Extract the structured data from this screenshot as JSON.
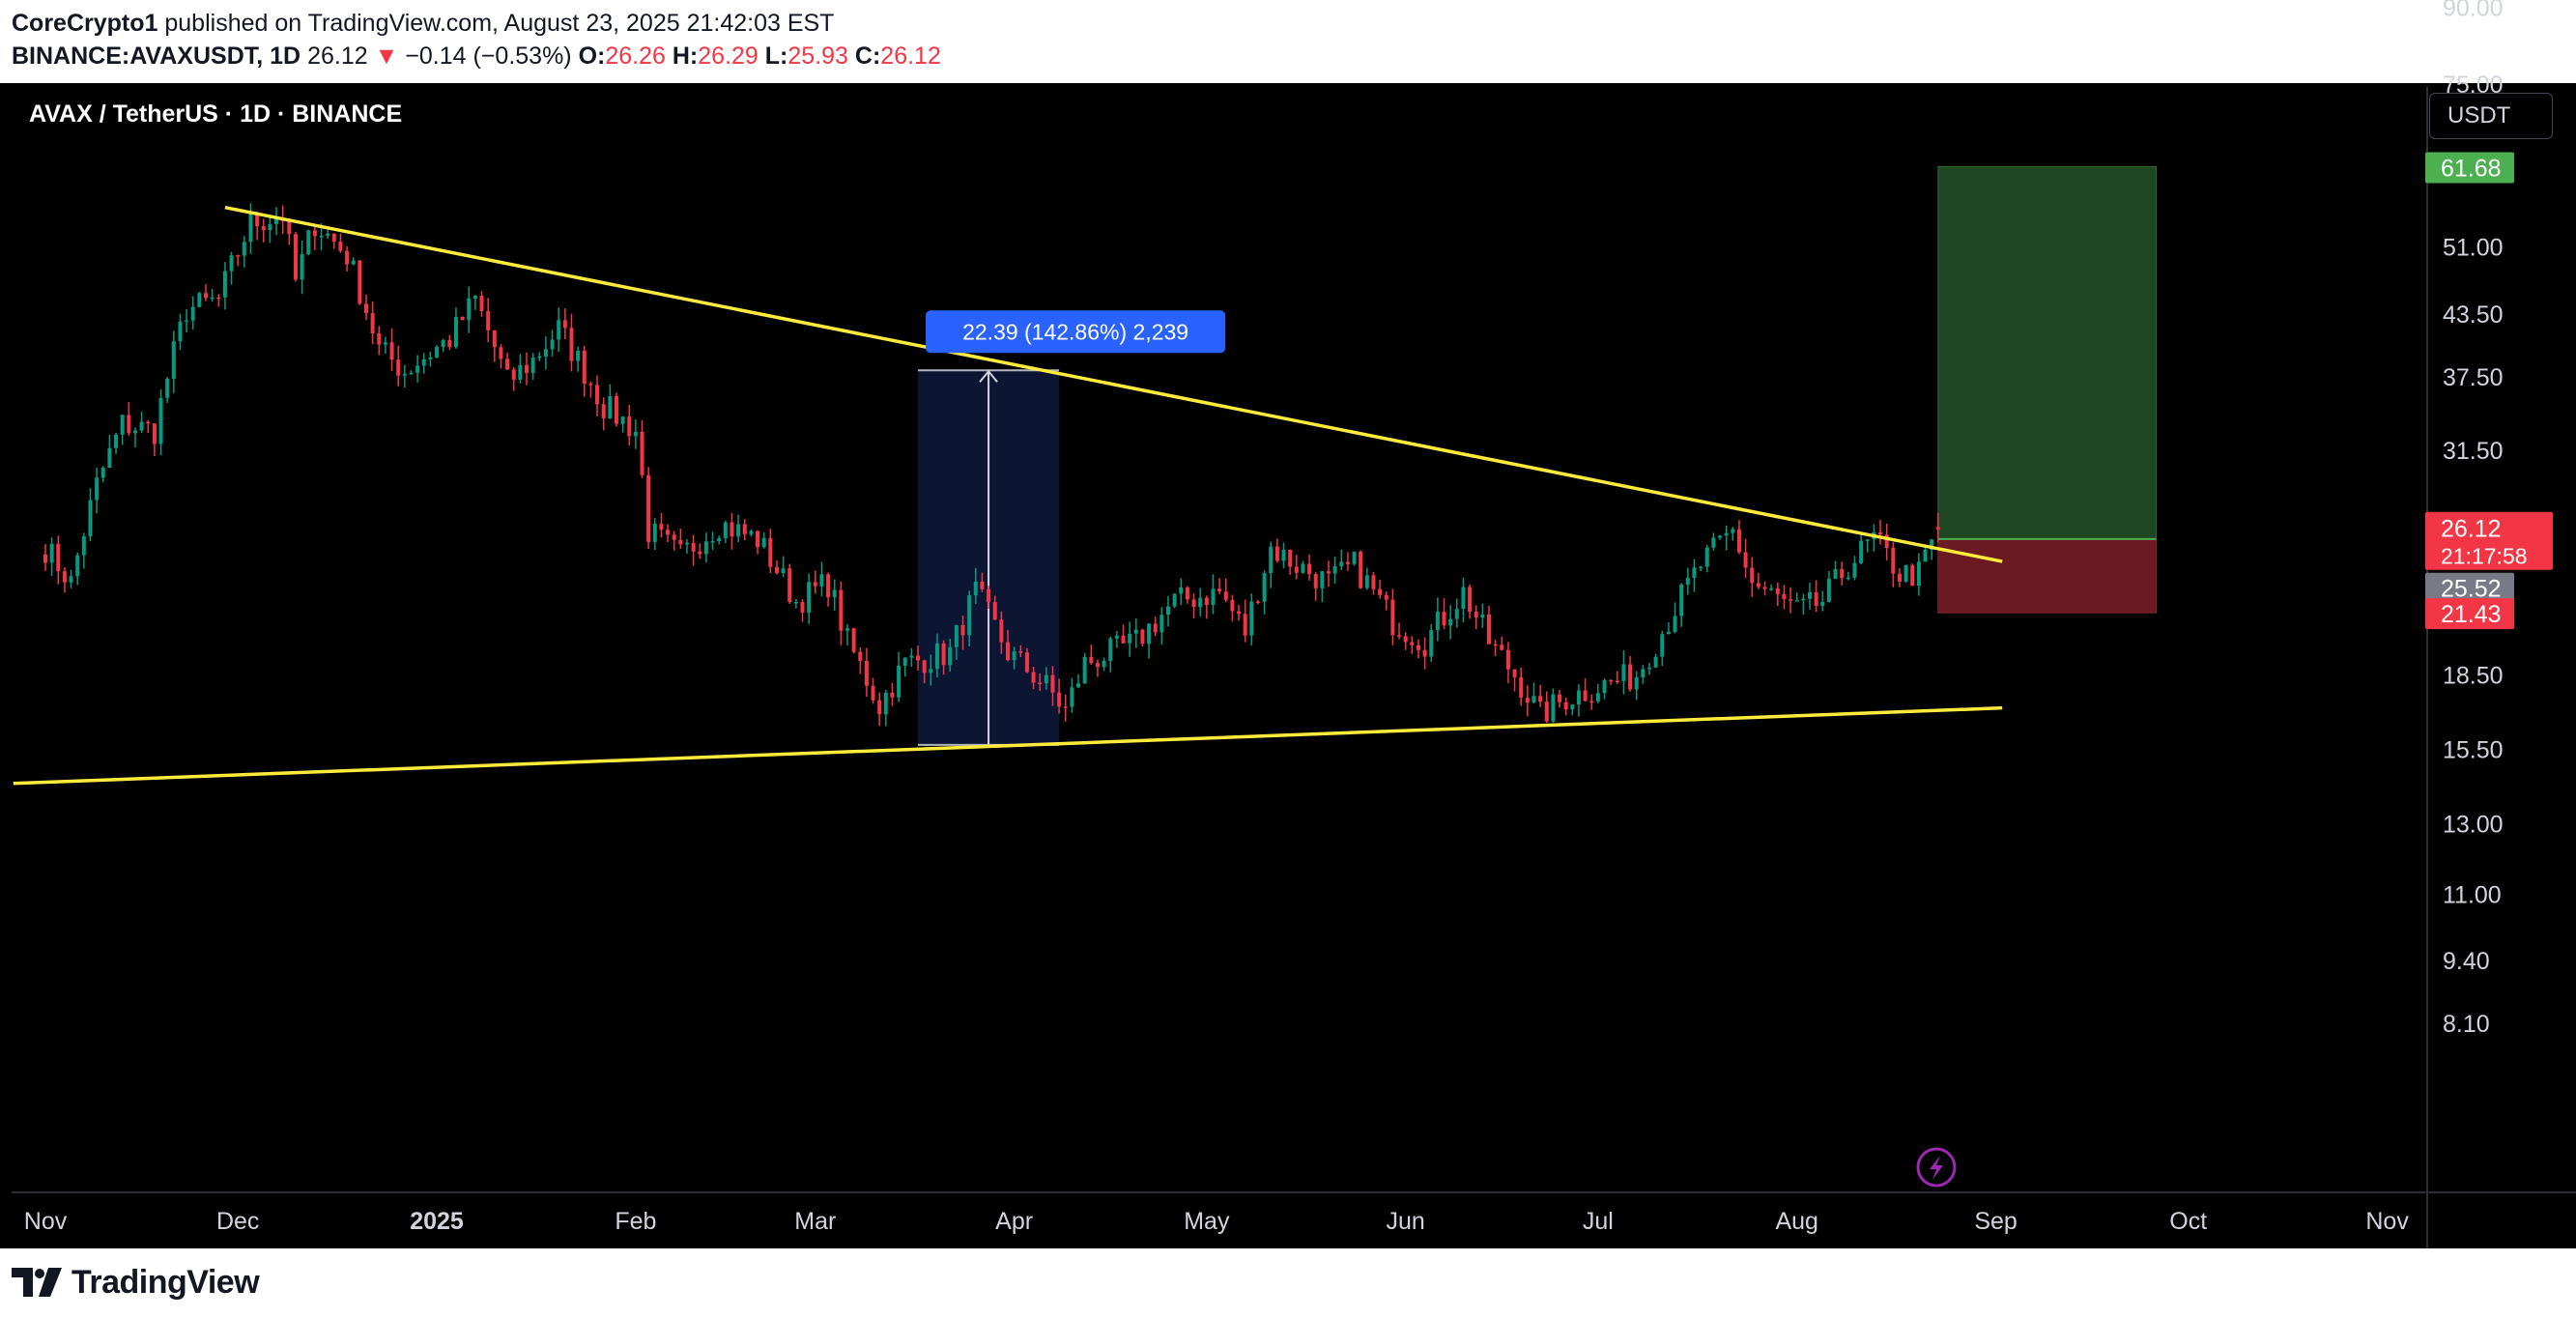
{
  "header": {
    "author": "CoreCrypto1",
    "published_text": "published on TradingView.com, August 23, 2025 21:42:03 EST",
    "symbol_line": "BINANCE:AVAXUSDT, 1D",
    "last_price": "26.12",
    "change_arrow": "▼",
    "change": "−0.14 (−0.53%)",
    "open_label": "O:",
    "open": "26.26",
    "high_label": "H:",
    "high": "26.29",
    "low_label": "L:",
    "low": "25.93",
    "close_label": "C:",
    "close": "26.12"
  },
  "chart_title": "AVAX / TetherUS · 1D · BINANCE",
  "currency_button": "USDT",
  "footer": {
    "brand": "TradingView"
  },
  "colors": {
    "up": "#089981",
    "down": "#f23645",
    "trendline": "#ffeb3b",
    "target_zone": "#1e4620",
    "stop_zone": "#6b1a21",
    "measure_box": "#0c1633",
    "measure_label_bg": "#2962ff"
  },
  "chart_data": {
    "type": "candlestick",
    "scale": "log",
    "ylim": [
      7.5,
      100
    ],
    "x_ticks": [
      "Nov",
      "Dec",
      "2025",
      "Feb",
      "Mar",
      "Apr",
      "May",
      "Jun",
      "Jul",
      "Aug",
      "Sep",
      "Oct",
      "Nov"
    ],
    "x_tick_dates": [
      "2024-11-01",
      "2024-12-01",
      "2025-01-01",
      "2025-02-01",
      "2025-03-01",
      "2025-04-01",
      "2025-05-01",
      "2025-06-01",
      "2025-07-01",
      "2025-08-01",
      "2025-09-01",
      "2025-10-01",
      "2025-11-01"
    ],
    "y_ticks": [
      "90.00",
      "75.00",
      "51.00",
      "43.50",
      "37.50",
      "31.50",
      "18.50",
      "15.50",
      "13.00",
      "11.00",
      "9.40",
      "8.10"
    ],
    "y_tick_values": [
      90,
      75,
      51,
      43.5,
      37.5,
      31.5,
      18.5,
      15.5,
      13,
      11,
      9.4,
      8.1
    ],
    "ohlc_keypoints": [
      {
        "date": "2024-11-01",
        "close": 25.0
      },
      {
        "date": "2024-11-05",
        "close": 23.0
      },
      {
        "date": "2024-11-09",
        "close": 29.0
      },
      {
        "date": "2024-11-13",
        "close": 33.5
      },
      {
        "date": "2024-11-18",
        "close": 33.0
      },
      {
        "date": "2024-11-23",
        "close": 44.0
      },
      {
        "date": "2024-11-28",
        "close": 45.0
      },
      {
        "date": "2024-12-03",
        "close": 54.0
      },
      {
        "date": "2024-12-08",
        "close": 55.0
      },
      {
        "date": "2024-12-10",
        "close": 47.0
      },
      {
        "date": "2024-12-13",
        "close": 54.0
      },
      {
        "date": "2024-12-18",
        "close": 50.0
      },
      {
        "date": "2024-12-23",
        "close": 40.0
      },
      {
        "date": "2024-12-27",
        "close": 38.0
      },
      {
        "date": "2025-01-03",
        "close": 41.0
      },
      {
        "date": "2025-01-07",
        "close": 45.0
      },
      {
        "date": "2025-01-12",
        "close": 37.0
      },
      {
        "date": "2025-01-16",
        "close": 39.0
      },
      {
        "date": "2025-01-20",
        "close": 42.0
      },
      {
        "date": "2025-01-27",
        "close": 35.0
      },
      {
        "date": "2025-02-01",
        "close": 33.0
      },
      {
        "date": "2025-02-03",
        "close": 26.0
      },
      {
        "date": "2025-02-08",
        "close": 24.5
      },
      {
        "date": "2025-02-14",
        "close": 26.5
      },
      {
        "date": "2025-02-20",
        "close": 25.5
      },
      {
        "date": "2025-02-26",
        "close": 22.0
      },
      {
        "date": "2025-03-03",
        "close": 23.0
      },
      {
        "date": "2025-03-06",
        "close": 20.0
      },
      {
        "date": "2025-03-11",
        "close": 17.2
      },
      {
        "date": "2025-03-15",
        "close": 19.0
      },
      {
        "date": "2025-03-22",
        "close": 19.5
      },
      {
        "date": "2025-03-26",
        "close": 22.5
      },
      {
        "date": "2025-03-31",
        "close": 19.5
      },
      {
        "date": "2025-04-06",
        "close": 18.0
      },
      {
        "date": "2025-04-09",
        "close": 17.0
      },
      {
        "date": "2025-04-12",
        "close": 19.0
      },
      {
        "date": "2025-04-20",
        "close": 20.0
      },
      {
        "date": "2025-04-26",
        "close": 22.0
      },
      {
        "date": "2025-05-03",
        "close": 22.5
      },
      {
        "date": "2025-05-07",
        "close": 20.5
      },
      {
        "date": "2025-05-11",
        "close": 25.0
      },
      {
        "date": "2025-05-15",
        "close": 24.0
      },
      {
        "date": "2025-05-20",
        "close": 23.0
      },
      {
        "date": "2025-05-24",
        "close": 24.0
      },
      {
        "date": "2025-05-30",
        "close": 21.0
      },
      {
        "date": "2025-06-04",
        "close": 20.0
      },
      {
        "date": "2025-06-10",
        "close": 22.5
      },
      {
        "date": "2025-06-14",
        "close": 20.0
      },
      {
        "date": "2025-06-18",
        "close": 18.5
      },
      {
        "date": "2025-06-22",
        "close": 16.8
      },
      {
        "date": "2025-06-26",
        "close": 17.5
      },
      {
        "date": "2025-07-01",
        "close": 18.0
      },
      {
        "date": "2025-07-07",
        "close": 18.5
      },
      {
        "date": "2025-07-11",
        "close": 20.5
      },
      {
        "date": "2025-07-17",
        "close": 24.0
      },
      {
        "date": "2025-07-22",
        "close": 26.0
      },
      {
        "date": "2025-07-25",
        "close": 23.0
      },
      {
        "date": "2025-08-01",
        "close": 21.5
      },
      {
        "date": "2025-08-05",
        "close": 22.0
      },
      {
        "date": "2025-08-09",
        "close": 24.0
      },
      {
        "date": "2025-08-13",
        "close": 25.5
      },
      {
        "date": "2025-08-17",
        "close": 23.5
      },
      {
        "date": "2025-08-20",
        "close": 23.5
      },
      {
        "date": "2025-08-23",
        "close": 26.12
      }
    ],
    "trendlines": [
      {
        "name": "upper",
        "from": {
          "date": "2024-11-29",
          "price": 56.0
        },
        "to": {
          "date": "2025-09-02",
          "price": 24.2
        }
      },
      {
        "name": "lower",
        "from": {
          "date": "2024-10-27",
          "price": 14.3
        },
        "to": {
          "date": "2025-09-02",
          "price": 17.1
        }
      }
    ],
    "measurement": {
      "from_date": "2025-03-17",
      "to_date": "2025-04-08",
      "low": 15.67,
      "high": 38.06,
      "label": "22.39 (142.86%) 2,239"
    },
    "position": {
      "from_date": "2025-08-23",
      "to_date": "2025-09-26",
      "entry": 25.52,
      "target": 61.68,
      "stop": 21.43
    },
    "price_labels": [
      {
        "text": "61.68",
        "value": 61.68,
        "color": "#4caf50"
      },
      {
        "text": "26.12",
        "value": 26.12,
        "subtext": "21:17:58",
        "color": "#f23645"
      },
      {
        "text": "25.52",
        "value": 25.52,
        "color": "#787b86"
      },
      {
        "text": "21.43",
        "value": 21.43,
        "color": "#f23645"
      }
    ]
  }
}
